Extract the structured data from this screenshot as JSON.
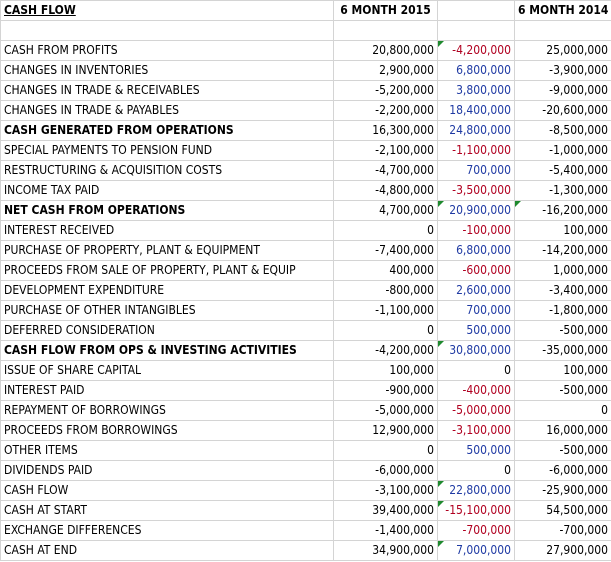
{
  "header": {
    "title": "CASH FLOW",
    "col2015": "6 MONTH 2015",
    "col2014": "6 MONTH 2014"
  },
  "colors": {
    "positive_diff": "#1f3aa3",
    "negative_diff": "#b00020",
    "flag": "#1e8a2e"
  },
  "rows": [
    {
      "label": "CASH FROM PROFITS",
      "v2015": "20,800,000",
      "diff": "-4,200,000",
      "v2014": "25,000,000",
      "bold": false,
      "diff_sign": "neg",
      "flag_diff": true,
      "flag_2014": false
    },
    {
      "label": "CHANGES IN INVENTORIES",
      "v2015": "2,900,000",
      "diff": "6,800,000",
      "v2014": "-3,900,000",
      "bold": false,
      "diff_sign": "pos",
      "flag_diff": false,
      "flag_2014": false
    },
    {
      "label": "CHANGES IN TRADE & RECEIVABLES",
      "v2015": "-5,200,000",
      "diff": "3,800,000",
      "v2014": "-9,000,000",
      "bold": false,
      "diff_sign": "pos",
      "flag_diff": false,
      "flag_2014": false
    },
    {
      "label": "CHANGES IN TRADE & PAYABLES",
      "v2015": "-2,200,000",
      "diff": "18,400,000",
      "v2014": "-20,600,000",
      "bold": false,
      "diff_sign": "pos",
      "flag_diff": false,
      "flag_2014": false
    },
    {
      "label": "CASH GENERATED FROM OPERATIONS",
      "v2015": "16,300,000",
      "diff": "24,800,000",
      "v2014": "-8,500,000",
      "bold": true,
      "diff_sign": "pos",
      "flag_diff": false,
      "flag_2014": false
    },
    {
      "label": "SPECIAL PAYMENTS TO PENSION FUND",
      "v2015": "-2,100,000",
      "diff": "-1,100,000",
      "v2014": "-1,000,000",
      "bold": false,
      "diff_sign": "neg",
      "flag_diff": false,
      "flag_2014": false
    },
    {
      "label": "RESTRUCTURING & ACQUISITION COSTS",
      "v2015": "-4,700,000",
      "diff": "700,000",
      "v2014": "-5,400,000",
      "bold": false,
      "diff_sign": "pos",
      "flag_diff": false,
      "flag_2014": false
    },
    {
      "label": "INCOME TAX PAID",
      "v2015": "-4,800,000",
      "diff": "-3,500,000",
      "v2014": "-1,300,000",
      "bold": false,
      "diff_sign": "neg",
      "flag_diff": false,
      "flag_2014": false
    },
    {
      "label": "NET CASH FROM OPERATIONS",
      "v2015": "4,700,000",
      "diff": "20,900,000",
      "v2014": "-16,200,000",
      "bold": true,
      "diff_sign": "pos",
      "flag_diff": true,
      "flag_2014": true
    },
    {
      "label": "INTEREST RECEIVED",
      "v2015": "0",
      "diff": "-100,000",
      "v2014": "100,000",
      "bold": false,
      "diff_sign": "neg",
      "flag_diff": false,
      "flag_2014": false
    },
    {
      "label": "PURCHASE OF PROPERTY, PLANT & EQUIPMENT",
      "v2015": "-7,400,000",
      "diff": "6,800,000",
      "v2014": "-14,200,000",
      "bold": false,
      "diff_sign": "pos",
      "flag_diff": false,
      "flag_2014": false
    },
    {
      "label": "PROCEEDS FROM SALE OF PROPERTY, PLANT & EQUIP",
      "v2015": "400,000",
      "diff": "-600,000",
      "v2014": "1,000,000",
      "bold": false,
      "diff_sign": "neg",
      "flag_diff": false,
      "flag_2014": false
    },
    {
      "label": "DEVELOPMENT EXPENDITURE",
      "v2015": "-800,000",
      "diff": "2,600,000",
      "v2014": "-3,400,000",
      "bold": false,
      "diff_sign": "pos",
      "flag_diff": false,
      "flag_2014": false
    },
    {
      "label": "PURCHASE OF OTHER INTANGIBLES",
      "v2015": "-1,100,000",
      "diff": "700,000",
      "v2014": "-1,800,000",
      "bold": false,
      "diff_sign": "pos",
      "flag_diff": false,
      "flag_2014": false
    },
    {
      "label": "DEFERRED CONSIDERATION",
      "v2015": "0",
      "diff": "500,000",
      "v2014": "-500,000",
      "bold": false,
      "diff_sign": "pos",
      "flag_diff": false,
      "flag_2014": false
    },
    {
      "label": "CASH FLOW FROM OPS & INVESTING ACTIVITIES",
      "v2015": "-4,200,000",
      "diff": "30,800,000",
      "v2014": "-35,000,000",
      "bold": true,
      "diff_sign": "pos",
      "flag_diff": true,
      "flag_2014": false
    },
    {
      "label": "ISSUE OF SHARE CAPITAL",
      "v2015": "100,000",
      "diff": "0",
      "v2014": "100,000",
      "bold": false,
      "diff_sign": "zero",
      "flag_diff": false,
      "flag_2014": false
    },
    {
      "label": "INTEREST PAID",
      "v2015": "-900,000",
      "diff": "-400,000",
      "v2014": "-500,000",
      "bold": false,
      "diff_sign": "neg",
      "flag_diff": false,
      "flag_2014": false
    },
    {
      "label": "REPAYMENT OF BORROWINGS",
      "v2015": "-5,000,000",
      "diff": "-5,000,000",
      "v2014": "0",
      "bold": false,
      "diff_sign": "neg",
      "flag_diff": false,
      "flag_2014": false
    },
    {
      "label": "PROCEEDS FROM BORROWINGS",
      "v2015": "12,900,000",
      "diff": "-3,100,000",
      "v2014": "16,000,000",
      "bold": false,
      "diff_sign": "neg",
      "flag_diff": false,
      "flag_2014": false
    },
    {
      "label": "OTHER ITEMS",
      "v2015": "0",
      "diff": "500,000",
      "v2014": "-500,000",
      "bold": false,
      "diff_sign": "pos",
      "flag_diff": false,
      "flag_2014": false
    },
    {
      "label": "DIVIDENDS PAID",
      "v2015": "-6,000,000",
      "diff": "0",
      "v2014": "-6,000,000",
      "bold": false,
      "diff_sign": "zero",
      "flag_diff": false,
      "flag_2014": false
    },
    {
      "label": "CASH FLOW",
      "v2015": "-3,100,000",
      "diff": "22,800,000",
      "v2014": "-25,900,000",
      "bold": false,
      "diff_sign": "pos",
      "flag_diff": true,
      "flag_2014": false
    },
    {
      "label": "CASH AT START",
      "v2015": "39,400,000",
      "diff": "-15,100,000",
      "v2014": "54,500,000",
      "bold": false,
      "diff_sign": "neg",
      "flag_diff": true,
      "flag_2014": false
    },
    {
      "label": "EXCHANGE DIFFERENCES",
      "v2015": "-1,400,000",
      "diff": "-700,000",
      "v2014": "-700,000",
      "bold": false,
      "diff_sign": "neg",
      "flag_diff": false,
      "flag_2014": false
    },
    {
      "label": "CASH AT END",
      "v2015": "34,900,000",
      "diff": "7,000,000",
      "v2014": "27,900,000",
      "bold": false,
      "diff_sign": "pos",
      "flag_diff": true,
      "flag_2014": false
    }
  ]
}
